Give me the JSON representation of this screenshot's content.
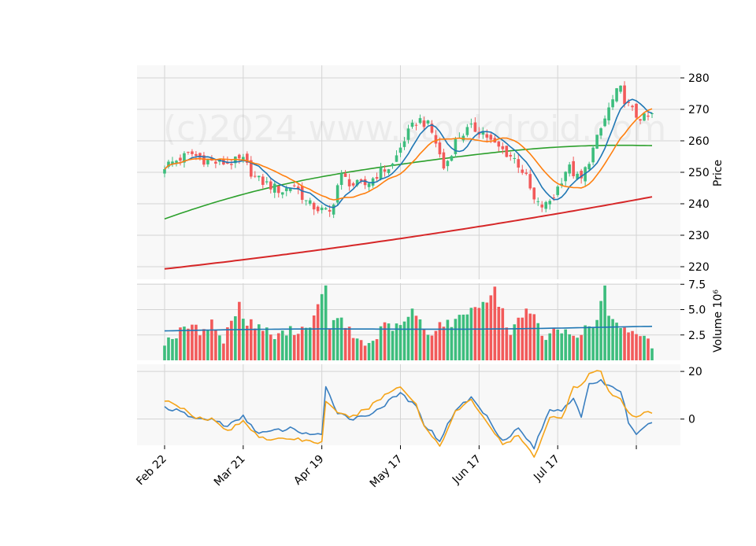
{
  "watermark": "(c)2024 www.stockdroid.com",
  "colors": {
    "up": "#3dbd7d",
    "down": "#f25a5a",
    "panel_bg": "#f8f8f8",
    "grid": "#d4d4d4",
    "ma_short": "#1f77b4",
    "ma_mid": "#ff7f0e",
    "ma_50": "#2ca02c",
    "ma_200": "#d62728",
    "volume_ma": "#1f77b4",
    "osc_line1": "#3a7fc0",
    "osc_line2": "#f5a418"
  },
  "chart_data": [
    {
      "type": "candlestick",
      "panel": "price",
      "ylabel": "Price",
      "ylim": [
        216,
        284
      ],
      "yticks": [
        "220",
        "230",
        "240",
        "250",
        "260",
        "270",
        "280"
      ],
      "x_tick_labels": [
        "Feb 22",
        "Mar 21",
        "Apr 19",
        "May 17",
        "Jun 17",
        "Jul 17"
      ],
      "n_sessions": 125,
      "key_closes": [
        [
          0,
          252
        ],
        [
          4,
          254
        ],
        [
          8,
          256
        ],
        [
          12,
          254
        ],
        [
          16,
          253
        ],
        [
          20,
          253
        ],
        [
          24,
          254
        ],
        [
          28,
          248
        ],
        [
          32,
          246
        ],
        [
          36,
          244
        ],
        [
          40,
          246
        ],
        [
          44,
          240
        ],
        [
          48,
          238
        ],
        [
          51,
          237
        ],
        [
          54,
          249
        ],
        [
          58,
          246
        ],
        [
          62,
          246
        ],
        [
          66,
          250
        ],
        [
          70,
          252
        ],
        [
          74,
          261
        ],
        [
          78,
          267
        ],
        [
          81,
          265
        ],
        [
          83,
          261
        ],
        [
          86,
          251
        ],
        [
          90,
          261
        ],
        [
          94,
          264
        ],
        [
          98,
          263
        ],
        [
          101,
          259
        ],
        [
          104,
          257
        ],
        [
          108,
          254
        ],
        [
          111,
          249
        ],
        [
          114,
          240
        ],
        [
          117,
          239
        ],
        [
          120,
          243
        ],
        [
          124,
          252
        ],
        [
          128,
          247
        ],
        [
          131,
          255
        ],
        [
          134,
          263
        ],
        [
          137,
          271
        ],
        [
          140,
          277
        ],
        [
          142,
          272
        ],
        [
          145,
          268
        ],
        [
          148,
          267
        ],
        [
          150,
          268
        ]
      ],
      "series_lines": [
        {
          "name": "",
          "color_key": "ma_short",
          "kind": "ma_short"
        },
        {
          "name": "",
          "color_key": "ma_mid",
          "kind": "ma_mid"
        },
        {
          "name": "",
          "color_key": "ma_50",
          "values_start_end": [
            235.2,
            258.3
          ]
        },
        {
          "name": "",
          "color_key": "ma_200",
          "values_start_end": [
            219.3,
            242.2
          ]
        }
      ]
    },
    {
      "type": "bar",
      "panel": "volume",
      "ylabel": "Volume  10⁶",
      "ylim": [
        0,
        7.6
      ],
      "yticks": [
        "2.5",
        "5.0",
        "7.5"
      ],
      "volume_ma_level": [
        2.9,
        3.3
      ],
      "key_volumes": [
        [
          0,
          1.9
        ],
        [
          3,
          2.5
        ],
        [
          6,
          3.4
        ],
        [
          9,
          2.9
        ],
        [
          12,
          3.7
        ],
        [
          15,
          1.9
        ],
        [
          19,
          5.8
        ],
        [
          20,
          3.9
        ],
        [
          24,
          3.4
        ],
        [
          28,
          2.3
        ],
        [
          32,
          2.9
        ],
        [
          36,
          3.2
        ],
        [
          38,
          4.2
        ],
        [
          41,
          7.1
        ],
        [
          42,
          3.5
        ],
        [
          45,
          4.0
        ],
        [
          48,
          2.3
        ],
        [
          52,
          1.5
        ],
        [
          56,
          3.4
        ],
        [
          60,
          3.2
        ],
        [
          63,
          4.9
        ],
        [
          67,
          2.5
        ],
        [
          70,
          3.6
        ],
        [
          74,
          3.7
        ],
        [
          77,
          5.0
        ],
        [
          79,
          5.1
        ],
        [
          82,
          6.1
        ],
        [
          84,
          6.8
        ],
        [
          88,
          2.6
        ],
        [
          91,
          4.7
        ],
        [
          93,
          5.1
        ],
        [
          96,
          2.2
        ],
        [
          100,
          2.9
        ],
        [
          104,
          2.6
        ],
        [
          108,
          3.1
        ],
        [
          110,
          3.8
        ],
        [
          112,
          7.5
        ],
        [
          113,
          4.2
        ],
        [
          116,
          2.9
        ],
        [
          119,
          3.0
        ],
        [
          122,
          2.2
        ],
        [
          124,
          1.6
        ]
      ]
    },
    {
      "type": "line",
      "panel": "oscillator",
      "ylim": [
        -11,
        23
      ],
      "yticks": [
        "0",
        "20"
      ],
      "series": [
        {
          "name": "",
          "color_key": "osc_line1",
          "key_values": [
            [
              0,
              5
            ],
            [
              4,
              3
            ],
            [
              8,
              0
            ],
            [
              12,
              0
            ],
            [
              16,
              -3
            ],
            [
              20,
              1
            ],
            [
              24,
              -6
            ],
            [
              28,
              -5
            ],
            [
              32,
              -4
            ],
            [
              36,
              -6
            ],
            [
              40,
              -7
            ],
            [
              41,
              13
            ],
            [
              44,
              3
            ],
            [
              48,
              0
            ],
            [
              52,
              2
            ],
            [
              56,
              6
            ],
            [
              60,
              11
            ],
            [
              64,
              5
            ],
            [
              66,
              -2
            ],
            [
              70,
              -9
            ],
            [
              74,
              4
            ],
            [
              78,
              9
            ],
            [
              82,
              1
            ],
            [
              86,
              -9
            ],
            [
              90,
              -4
            ],
            [
              94,
              -12
            ],
            [
              98,
              4
            ],
            [
              101,
              4
            ],
            [
              104,
              9
            ],
            [
              106,
              0
            ],
            [
              108,
              15
            ],
            [
              111,
              16
            ],
            [
              113,
              14
            ],
            [
              116,
              12
            ],
            [
              118,
              -1
            ],
            [
              120,
              -7
            ],
            [
              122,
              -4
            ],
            [
              124,
              -1
            ]
          ]
        },
        {
          "name": "",
          "color_key": "osc_line2",
          "key_values": [
            [
              0,
              8
            ],
            [
              4,
              5
            ],
            [
              8,
              1
            ],
            [
              12,
              0
            ],
            [
              16,
              -5
            ],
            [
              20,
              -1
            ],
            [
              24,
              -7
            ],
            [
              28,
              -9
            ],
            [
              32,
              -8
            ],
            [
              36,
              -9
            ],
            [
              40,
              -10
            ],
            [
              41,
              8
            ],
            [
              44,
              2
            ],
            [
              48,
              1
            ],
            [
              52,
              5
            ],
            [
              56,
              10
            ],
            [
              60,
              14
            ],
            [
              64,
              6
            ],
            [
              66,
              -3
            ],
            [
              70,
              -11
            ],
            [
              74,
              3
            ],
            [
              78,
              8
            ],
            [
              82,
              -1
            ],
            [
              86,
              -11
            ],
            [
              90,
              -7
            ],
            [
              94,
              -16
            ],
            [
              98,
              1
            ],
            [
              101,
              0
            ],
            [
              104,
              14
            ],
            [
              106,
              14
            ],
            [
              108,
              19
            ],
            [
              111,
              20
            ],
            [
              113,
              11
            ],
            [
              116,
              8
            ],
            [
              118,
              3
            ],
            [
              120,
              1
            ],
            [
              122,
              3
            ],
            [
              124,
              2
            ]
          ]
        }
      ]
    }
  ]
}
